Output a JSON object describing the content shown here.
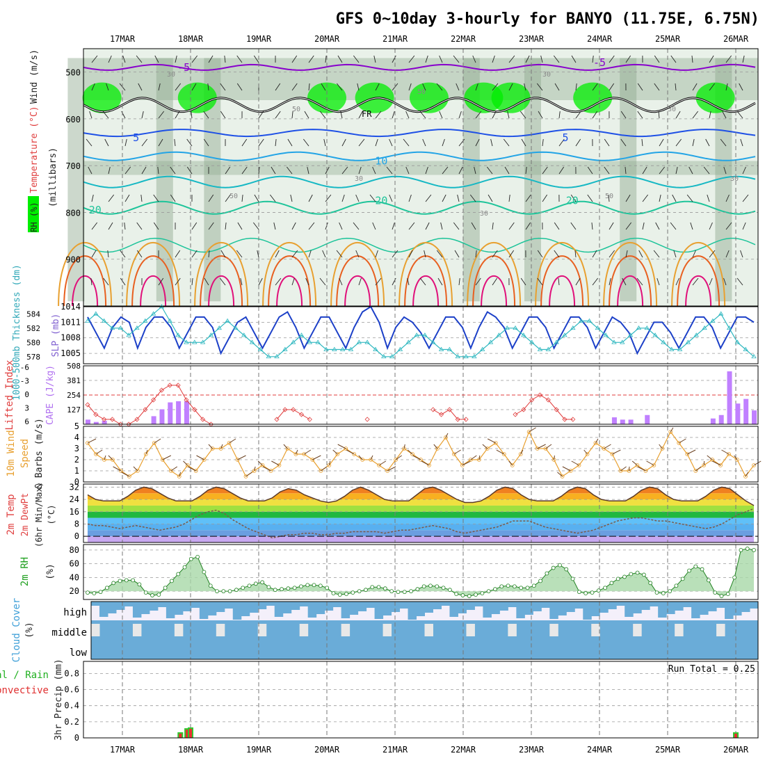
{
  "title": "GFS 0~10day 3-hourly for BANYO (11.75E, 6.75N)",
  "dates": [
    "17MAR",
    "18MAR",
    "19MAR",
    "20MAR",
    "21MAR",
    "22MAR",
    "23MAR",
    "24MAR",
    "25MAR",
    "26MAR"
  ],
  "colors": {
    "rh_light": "#e3ede3",
    "rh_mid": "#b6cbb6",
    "rh_dark": "#8fa88f",
    "rh_bright": "#00ee00",
    "t_purple": "#8800cc",
    "t_blue": "#1e50e6",
    "t_lightblue": "#22a4e6",
    "t_cyan": "#16b8c4",
    "t_teal": "#1ec49a",
    "t_orange": "#e8a030",
    "t_darkorange": "#e86020",
    "t_magenta": "#e0107a",
    "slp": "#1c40c8",
    "thickness": "#30b8c0",
    "lifted": "#e03c3c",
    "cape": "#c080ff",
    "wind10": "#e8a030",
    "cloud": "#6aacd8",
    "cloud_bg": "#f4f0fa",
    "precip_total": "#30c830",
    "precip_conv": "#e83030"
  },
  "chart_data": [
    {
      "type": "heatmap",
      "name": "upper-air cross-section",
      "ylabel": "(millibars)",
      "side_labels": [
        "RH (%)",
        "Temperature (°C)",
        "Wind (m/s)"
      ],
      "yticks": [
        500,
        600,
        700,
        800,
        900
      ],
      "ylim": [
        1000,
        450
      ],
      "freezing_label": "FR",
      "isotherm_labels": [
        {
          "text": "-5",
          "x": "17.9",
          "p": 490,
          "color": "t_purple"
        },
        {
          "text": "-5",
          "x": "24.0",
          "p": 480,
          "color": "t_purple"
        },
        {
          "text": "5",
          "x": "17.2",
          "p": 640,
          "color": "t_blue"
        },
        {
          "text": "5",
          "x": "23.5",
          "p": 640,
          "color": "t_blue"
        },
        {
          "text": "10",
          "x": "20.8",
          "p": 690,
          "color": "t_lightblue"
        },
        {
          "text": "20",
          "x": "16.6",
          "p": 795,
          "color": "t_teal"
        },
        {
          "text": "20",
          "x": "20.8",
          "p": 775,
          "color": "t_teal"
        },
        {
          "text": "20",
          "x": "23.6",
          "p": 775,
          "color": "t_teal"
        }
      ],
      "rh_labels": [
        "30",
        "50",
        "50",
        "30",
        "50",
        "30",
        "30",
        "50",
        "30",
        "30"
      ]
    },
    {
      "type": "line",
      "name": "slp-thickness",
      "ylabel_left": "1000-500mb Thickness (dm)",
      "ylabel_right": "SLP (mb)",
      "y_left_ticks": [
        578,
        580,
        582,
        584
      ],
      "y_right_ticks": [
        1005,
        1008,
        1011,
        1014
      ],
      "slp_series": [
        1012,
        1009,
        1006,
        1010,
        1012,
        1011,
        1006,
        1010,
        1012,
        1012,
        1010,
        1006,
        1009,
        1012,
        1012,
        1010,
        1005,
        1008,
        1011,
        1012,
        1009,
        1006,
        1009,
        1012,
        1013,
        1010,
        1006,
        1009,
        1012,
        1012,
        1009,
        1006,
        1010,
        1013,
        1014,
        1011,
        1006,
        1010,
        1012,
        1011,
        1009,
        1006,
        1009,
        1012,
        1012,
        1010,
        1006,
        1010,
        1013,
        1012,
        1010,
        1006,
        1009,
        1012,
        1012,
        1010,
        1006,
        1009,
        1012,
        1012,
        1010,
        1006,
        1009,
        1012,
        1011,
        1009,
        1005,
        1008,
        1011,
        1011,
        1009,
        1006,
        1009,
        1012,
        1012,
        1010,
        1006,
        1009,
        1012,
        1012,
        1011
      ],
      "thickness_series": [
        583,
        584,
        583,
        582,
        582,
        581,
        582,
        583,
        584,
        585,
        583,
        581,
        580,
        580,
        580,
        581,
        582,
        583,
        582,
        581,
        580,
        579,
        578,
        578,
        579,
        580,
        581,
        580,
        580,
        579,
        579,
        579,
        579,
        580,
        580,
        579,
        578,
        578,
        579,
        580,
        581,
        581,
        580,
        579,
        579,
        578,
        578,
        578,
        579,
        580,
        581,
        582,
        582,
        581,
        580,
        579,
        579,
        580,
        581,
        582,
        583,
        583,
        582,
        581,
        580,
        580,
        581,
        582,
        582,
        581,
        580,
        579,
        579,
        580,
        581,
        582,
        583,
        584,
        582,
        580,
        579,
        578
      ]
    },
    {
      "type": "bar",
      "name": "lifted-cape",
      "ylabel_left": "Lifted Index",
      "ylabel_right": "CAPE (J/kg)",
      "y_left_ticks": [
        "-6",
        "-3",
        "0",
        "3",
        "6"
      ],
      "y_right_ticks": [
        508,
        381,
        254,
        127
      ],
      "lifted_series": [
        2,
        4,
        5,
        5,
        6,
        6,
        5,
        3,
        1,
        -1,
        -2,
        -2,
        1,
        3,
        5,
        6,
        null,
        null,
        null,
        null,
        null,
        null,
        null,
        5,
        3,
        3,
        4,
        5,
        null,
        null,
        null,
        null,
        null,
        null,
        5,
        null,
        null,
        null,
        null,
        null,
        null,
        null,
        3,
        4,
        3,
        5,
        5,
        null,
        null,
        null,
        null,
        null,
        4,
        3,
        1,
        0,
        1,
        3,
        5,
        5,
        null,
        null,
        null,
        null,
        null,
        null,
        null,
        null,
        null,
        null,
        null,
        null,
        null,
        null,
        null,
        null,
        null,
        null,
        null,
        null,
        null,
        null
      ],
      "cape_series": [
        40,
        20,
        30,
        0,
        0,
        0,
        0,
        0,
        70,
        130,
        190,
        200,
        200,
        0,
        0,
        0,
        0,
        0,
        0,
        0,
        0,
        0,
        0,
        0,
        0,
        0,
        0,
        0,
        0,
        0,
        0,
        0,
        0,
        0,
        0,
        0,
        0,
        0,
        0,
        0,
        0,
        0,
        0,
        0,
        0,
        0,
        0,
        0,
        0,
        0,
        0,
        0,
        0,
        0,
        0,
        0,
        0,
        0,
        0,
        0,
        0,
        0,
        0,
        0,
        60,
        40,
        40,
        0,
        80,
        0,
        0,
        0,
        0,
        0,
        0,
        0,
        50,
        80,
        460,
        180,
        220,
        120
      ]
    },
    {
      "type": "line",
      "name": "wind10m",
      "ylabel": "10m Wind Speed & Barbs (m/s)",
      "y_ticks": [
        0,
        1,
        2,
        3,
        4,
        5
      ],
      "speed_series": [
        3.5,
        2.5,
        2,
        2,
        1,
        0.5,
        1,
        2.5,
        3.5,
        2,
        1,
        0.5,
        1.5,
        1,
        2,
        3,
        3,
        3.5,
        2,
        0.5,
        1,
        1.5,
        1,
        1.5,
        3,
        2.5,
        2.5,
        2,
        1,
        1.5,
        2.5,
        3,
        2.5,
        2,
        2,
        1.5,
        1,
        2,
        3,
        2.5,
        2,
        1.5,
        3,
        4,
        2.5,
        1.5,
        2,
        2,
        3,
        3.5,
        2.5,
        1.5,
        2.5,
        4.5,
        3,
        3,
        2,
        0.5,
        1,
        1.5,
        2.5,
        3.5,
        3,
        2.5,
        1,
        1,
        1.5,
        1,
        1.5,
        3,
        4.5,
        3.5,
        2.5,
        1,
        1.5,
        2,
        1.5,
        2.5,
        2,
        0.5,
        1.5
      ]
    },
    {
      "type": "area",
      "name": "temperature-2m",
      "ylabel": "2m Temp 2m DewPt (6hr Min/Max) (°C)",
      "y_ticks": [
        0,
        8,
        16,
        24,
        32
      ],
      "temp_series": [
        27,
        24,
        23,
        23,
        23,
        26,
        30,
        32,
        31,
        28,
        25,
        23,
        23,
        23,
        26,
        30,
        32,
        31,
        28,
        25,
        23,
        23,
        23,
        25,
        29,
        31,
        30,
        27,
        25,
        23,
        22,
        23,
        26,
        30,
        32,
        30,
        27,
        24,
        23,
        23,
        23,
        27,
        31,
        32,
        30,
        27,
        24,
        22,
        22,
        23,
        26,
        30,
        32,
        31,
        27,
        24,
        23,
        23,
        23,
        26,
        30,
        32,
        31,
        27,
        24,
        23,
        23,
        23,
        26,
        30,
        32,
        31,
        27,
        24,
        23,
        23,
        23,
        26,
        30,
        32,
        31,
        27,
        23,
        20
      ],
      "dewpt_series": [
        8,
        7,
        7,
        6,
        5,
        6,
        7,
        6,
        5,
        4,
        5,
        6,
        8,
        11,
        14,
        16,
        17,
        15,
        11,
        8,
        5,
        3,
        1,
        -1,
        0,
        1,
        1,
        2,
        2,
        1,
        1,
        2,
        2,
        3,
        3,
        3,
        3,
        2,
        3,
        4,
        4,
        5,
        6,
        7,
        6,
        5,
        3,
        2,
        3,
        4,
        5,
        6,
        8,
        10,
        10,
        10,
        8,
        6,
        5,
        4,
        3,
        2,
        3,
        4,
        6,
        8,
        10,
        11,
        12,
        12,
        11,
        10,
        10,
        9,
        8,
        7,
        6,
        5,
        6,
        8,
        11,
        14,
        16,
        18
      ]
    },
    {
      "type": "area",
      "name": "rh-2m",
      "ylabel": "2m RH (%)",
      "y_ticks": [
        20,
        40,
        60,
        80
      ],
      "rh_series": [
        18,
        17,
        19,
        25,
        32,
        35,
        36,
        36,
        30,
        18,
        14,
        15,
        25,
        35,
        45,
        55,
        67,
        70,
        48,
        28,
        20,
        20,
        20,
        22,
        25,
        28,
        31,
        33,
        26,
        22,
        23,
        24,
        25,
        27,
        29,
        29,
        28,
        25,
        17,
        15,
        16,
        18,
        20,
        22,
        26,
        26,
        24,
        20,
        19,
        19,
        20,
        23,
        27,
        28,
        27,
        25,
        22,
        16,
        14,
        13,
        15,
        17,
        20,
        23,
        27,
        28,
        27,
        25,
        25,
        28,
        35,
        46,
        54,
        58,
        52,
        38,
        19,
        17,
        18,
        21,
        25,
        32,
        38,
        41,
        45,
        47,
        44,
        32,
        18,
        17,
        20,
        28,
        38,
        50,
        56,
        52,
        36,
        18,
        13,
        16,
        40,
        80,
        82,
        80
      ]
    },
    {
      "type": "heatmap",
      "name": "cloud-cover",
      "ylabel": "Cloud Cover (%)",
      "row_labels": [
        "high",
        "middle",
        "low"
      ]
    },
    {
      "type": "bar",
      "name": "precip-3hr",
      "ylabel": "3hr Precip (mm)",
      "legend": [
        "Total / Rain",
        "Convective"
      ],
      "y_ticks": [
        0,
        0.2,
        0.4,
        0.6,
        0.8
      ],
      "ylim": [
        0,
        0.95
      ],
      "run_total_label": "Run Total = 0.25",
      "bars": [
        {
          "date": "18MAR",
          "offset": -0.15,
          "value": 0.07
        },
        {
          "date": "18MAR",
          "offset": -0.05,
          "value": 0.12
        },
        {
          "date": "18MAR",
          "offset": 0.0,
          "value": 0.13
        },
        {
          "date": "26MAR",
          "offset": 0.0,
          "value": 0.07
        }
      ]
    }
  ]
}
